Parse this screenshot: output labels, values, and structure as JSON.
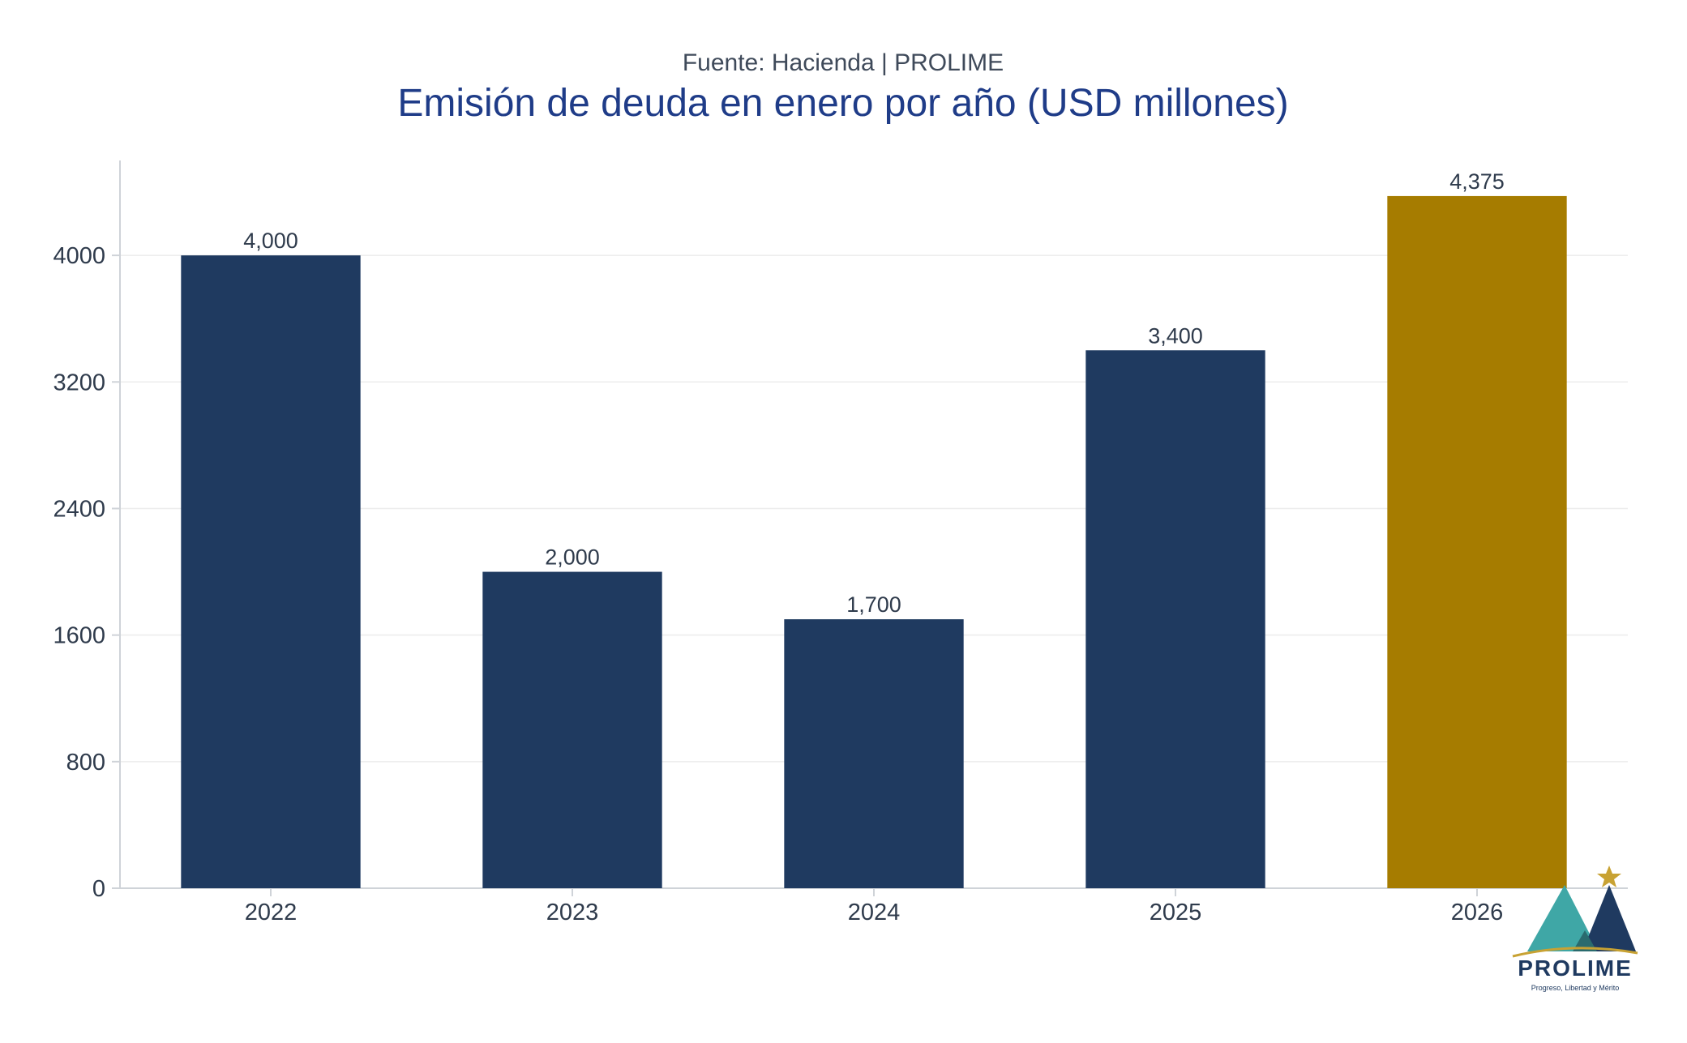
{
  "header": {
    "subtitle": "Fuente: Hacienda | PROLIME",
    "title": "Emisión de deuda en enero por año (USD millones)"
  },
  "colors": {
    "primary_bar": "#1f3a60",
    "highlight_bar": "#a67c00",
    "title": "#1f3c88",
    "text": "#2f3b4c",
    "grid": "#ececec",
    "axis": "#cfd3d8"
  },
  "chart_data": {
    "type": "bar",
    "categories": [
      "2022",
      "2023",
      "2024",
      "2025",
      "2026"
    ],
    "values": [
      4000,
      2000,
      1700,
      3400,
      4375
    ],
    "data_labels": [
      "4,000",
      "2,000",
      "1,700",
      "3,400",
      "4,375"
    ],
    "highlight_category": "2026",
    "title": "Emisión de deuda en enero por año (USD millones)",
    "subtitle": "Fuente: Hacienda | PROLIME",
    "xlabel": "",
    "ylabel": "",
    "ylim": [
      0,
      4600
    ],
    "yticks": [
      0,
      800,
      1600,
      2400,
      3200,
      4000
    ],
    "grid": true,
    "legend": "none"
  },
  "logo": {
    "name": "PROLIME",
    "tagline": "Progreso, Libertad y Mérito",
    "icon": "mountain-star-logo"
  }
}
